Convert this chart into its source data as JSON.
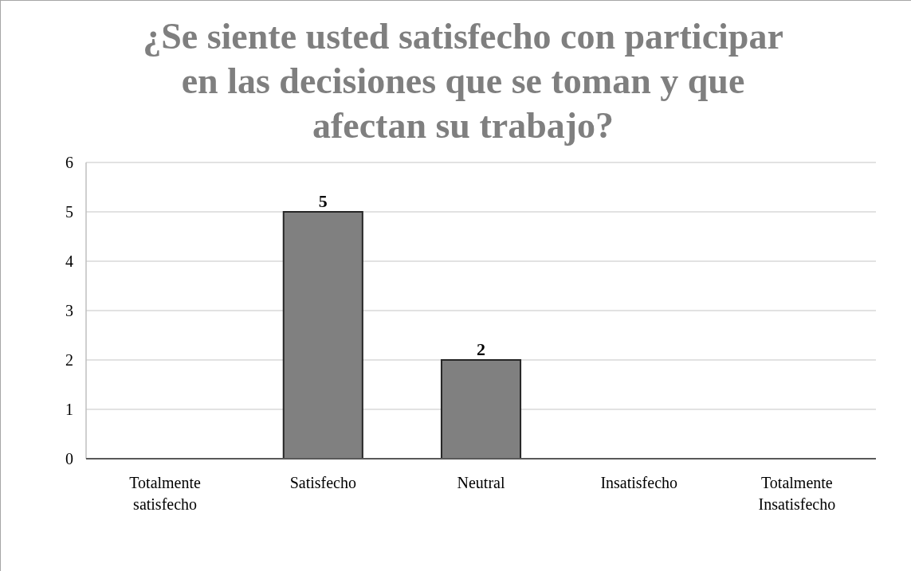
{
  "chart_data": {
    "type": "bar",
    "title": "¿Se siente usted satisfecho con participar en las decisiones que se toman y que afectan su trabajo?",
    "categories": [
      "Totalmente satisfecho",
      "Satisfecho",
      "Neutral",
      "Insatisfecho",
      "Totalmente Insatisfecho"
    ],
    "values": [
      0,
      5,
      2,
      0,
      0
    ],
    "value_labels": [
      null,
      "5",
      "2",
      null,
      null
    ],
    "color": "#808080",
    "ylim": [
      0,
      6
    ],
    "yticks": [
      0,
      1,
      2,
      3,
      4,
      5,
      6
    ],
    "grid": "y"
  }
}
